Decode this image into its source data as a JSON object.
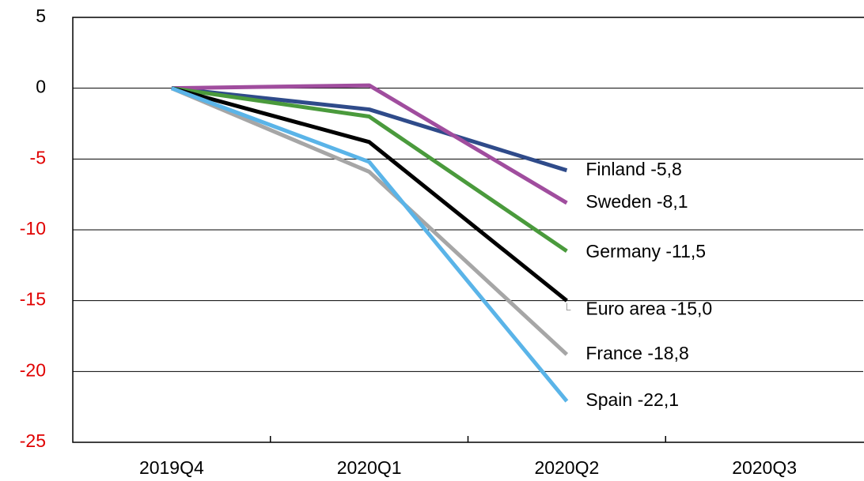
{
  "chart_data": {
    "type": "line",
    "categories": [
      "2019Q4",
      "2020Q1",
      "2020Q2",
      "2020Q3"
    ],
    "series": [
      {
        "name": "Finland",
        "color": "#2f4b8a",
        "values": [
          0,
          -1.5,
          -5.8,
          null
        ],
        "value_labels": [
          null,
          null,
          "Finland -5,8",
          null
        ]
      },
      {
        "name": "Sweden",
        "color": "#a04d9e",
        "values": [
          0,
          0.2,
          -8.1,
          null
        ],
        "value_labels": [
          null,
          null,
          "Sweden -8,1",
          null
        ]
      },
      {
        "name": "Germany",
        "color": "#4a9a3c",
        "values": [
          0,
          -2.0,
          -11.5,
          null
        ],
        "value_labels": [
          null,
          null,
          "Germany -11,5",
          null
        ]
      },
      {
        "name": "Euro area",
        "color": "#000000",
        "values": [
          0,
          -3.8,
          -15.0,
          null
        ],
        "value_labels": [
          null,
          null,
          "Euro area -15,0",
          null
        ]
      },
      {
        "name": "France",
        "color": "#a6a6a6",
        "values": [
          0,
          -5.9,
          -18.8,
          null
        ],
        "value_labels": [
          null,
          null,
          "France -18,8",
          null
        ]
      },
      {
        "name": "Spain",
        "color": "#5ab4e8",
        "values": [
          0,
          -5.2,
          -22.1,
          null
        ],
        "value_labels": [
          null,
          null,
          "Spain -22,1",
          null
        ]
      }
    ],
    "ylim": [
      -25,
      5
    ],
    "yticks": [
      -25,
      -20,
      -15,
      -10,
      -5,
      0,
      5
    ],
    "grid": true,
    "negative_tick_color": "#e00000"
  }
}
